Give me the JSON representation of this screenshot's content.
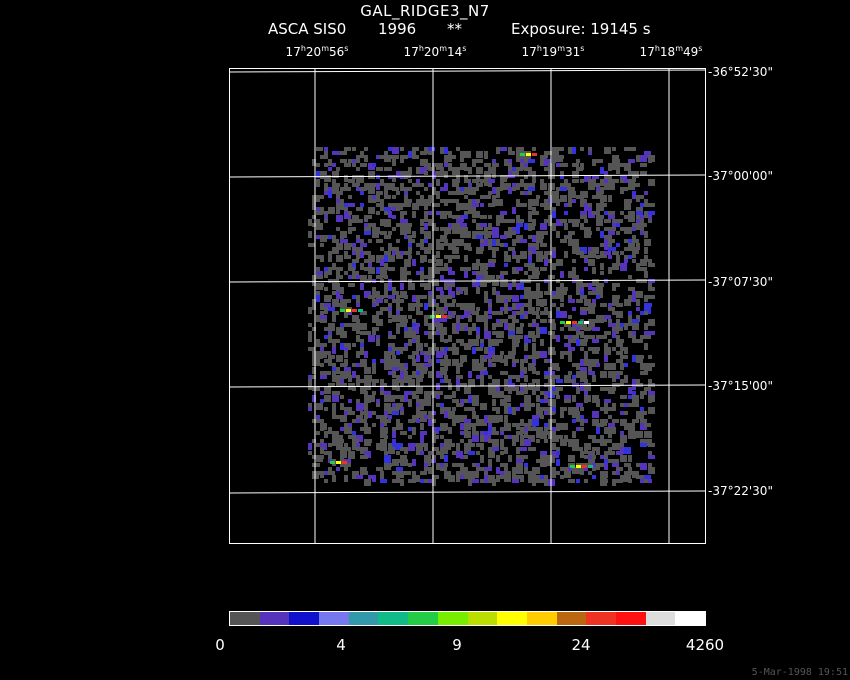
{
  "header": {
    "title": "GAL_RIDGE3_N7",
    "instrument": "ASCA SIS0",
    "year": "1996",
    "stars": "**",
    "exposure": "Exposure: 19145 s"
  },
  "ra_axis": {
    "labels": [
      {
        "h": "17",
        "m": "20",
        "s": "56"
      },
      {
        "h": "17",
        "m": "20",
        "s": "14"
      },
      {
        "h": "17",
        "m": "19",
        "s": "31"
      },
      {
        "h": "17",
        "m": "18",
        "s": "49"
      }
    ]
  },
  "dec_axis": {
    "labels": [
      "-36°52'30\"",
      "-37°00'00\"",
      "-37°07'30\"",
      "-37°15'00\"",
      "-37°22'30\""
    ]
  },
  "colorbar": {
    "colors": [
      "#555555",
      "#5533bb",
      "#1111cc",
      "#7777ee",
      "#3399aa",
      "#11bb88",
      "#22cc44",
      "#77ee00",
      "#bbdd00",
      "#ffff00",
      "#ffcc00",
      "#bb6611",
      "#ee3322",
      "#ff1111",
      "#dddddd",
      "#ffffff"
    ],
    "tick_labels": [
      "0",
      "4",
      "9",
      "24",
      "4260"
    ]
  },
  "footer": {
    "timestamp": "5-Mar-1998 19:51"
  }
}
